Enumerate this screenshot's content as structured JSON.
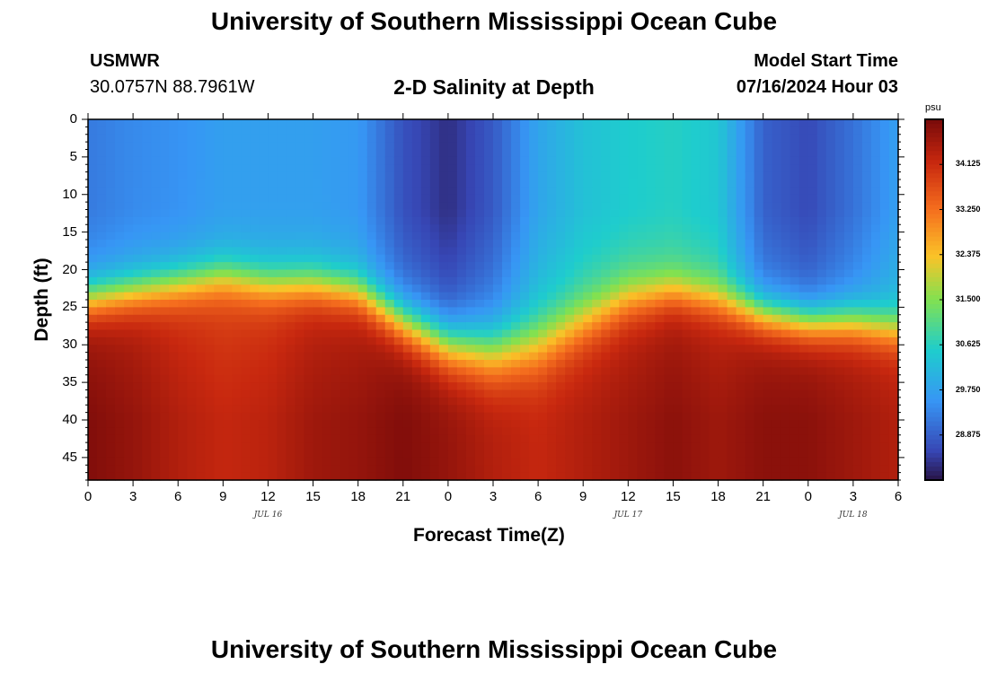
{
  "page": {
    "title_top": "University of Southern Mississippi Ocean Cube",
    "title_bottom": "University of Southern Mississippi Ocean Cube",
    "station": "USMWR",
    "coords": "30.0757N  88.7961W",
    "plot_title": "2-D Salinity at Depth",
    "model_start_label": "Model Start Time",
    "model_start_value": "07/16/2024 Hour 03"
  },
  "chart_data": {
    "type": "heatmap",
    "title": "2-D Salinity at Depth",
    "xlabel": "Forecast Time(Z)",
    "ylabel": "Depth (ft)",
    "x_tick_labels": [
      "0",
      "3",
      "6",
      "9",
      "12",
      "15",
      "18",
      "21",
      "0",
      "3",
      "6",
      "9",
      "12",
      "15",
      "18",
      "21",
      "0",
      "3",
      "6"
    ],
    "x_hours_range": [
      0,
      54
    ],
    "date_labels": [
      {
        "text": "JUL 16",
        "hour": 12
      },
      {
        "text": "JUL 17",
        "hour": 36
      },
      {
        "text": "JUL 18",
        "hour": 51
      }
    ],
    "y_tick_labels": [
      "0",
      "5",
      "10",
      "15",
      "20",
      "25",
      "30",
      "35",
      "40",
      "45"
    ],
    "y_ticks": [
      0,
      5,
      10,
      15,
      20,
      25,
      30,
      35,
      40,
      45
    ],
    "ylim": [
      0,
      48
    ],
    "colorbar": {
      "unit": "psu",
      "min": 28.0,
      "max": 35.0,
      "ticks": [
        34.125,
        33.25,
        32.375,
        31.5,
        30.625,
        29.75,
        28.875
      ],
      "tick_labels": [
        "34.125",
        "33.250",
        "32.375",
        "31.500",
        "30.625",
        "29.750",
        "28.875"
      ]
    },
    "columns": [
      {
        "hour": 0,
        "surface": 29.2,
        "halocline_depth": 24,
        "thickness": 7,
        "bottom": 34.9
      },
      {
        "hour": 3,
        "surface": 29.4,
        "halocline_depth": 23,
        "thickness": 7,
        "bottom": 34.7
      },
      {
        "hour": 6,
        "surface": 29.5,
        "halocline_depth": 22,
        "thickness": 7,
        "bottom": 34.4
      },
      {
        "hour": 9,
        "surface": 29.7,
        "halocline_depth": 21,
        "thickness": 7,
        "bottom": 34.2
      },
      {
        "hour": 12,
        "surface": 29.7,
        "halocline_depth": 22,
        "thickness": 7,
        "bottom": 34.3
      },
      {
        "hour": 15,
        "surface": 29.7,
        "halocline_depth": 22,
        "thickness": 7,
        "bottom": 34.6
      },
      {
        "hour": 18,
        "surface": 29.6,
        "halocline_depth": 23,
        "thickness": 7,
        "bottom": 34.7
      },
      {
        "hour": 21,
        "surface": 28.7,
        "halocline_depth": 27,
        "thickness": 8,
        "bottom": 34.9
      },
      {
        "hour": 24,
        "surface": 28.3,
        "halocline_depth": 30,
        "thickness": 9,
        "bottom": 34.7
      },
      {
        "hour": 27,
        "surface": 28.8,
        "halocline_depth": 31,
        "thickness": 10,
        "bottom": 34.4
      },
      {
        "hour": 30,
        "surface": 29.8,
        "halocline_depth": 30,
        "thickness": 10,
        "bottom": 34.2
      },
      {
        "hour": 33,
        "surface": 30.3,
        "halocline_depth": 27,
        "thickness": 9,
        "bottom": 34.4
      },
      {
        "hour": 36,
        "surface": 30.5,
        "halocline_depth": 24,
        "thickness": 8,
        "bottom": 34.6
      },
      {
        "hour": 39,
        "surface": 30.6,
        "halocline_depth": 23,
        "thickness": 7,
        "bottom": 34.8
      },
      {
        "hour": 42,
        "surface": 30.4,
        "halocline_depth": 24,
        "thickness": 7,
        "bottom": 34.6
      },
      {
        "hour": 45,
        "surface": 28.9,
        "halocline_depth": 26,
        "thickness": 7,
        "bottom": 34.8
      },
      {
        "hour": 48,
        "surface": 28.6,
        "halocline_depth": 27,
        "thickness": 7,
        "bottom": 34.8
      },
      {
        "hour": 51,
        "surface": 29.1,
        "halocline_depth": 27,
        "thickness": 7,
        "bottom": 34.6
      },
      {
        "hour": 54,
        "surface": 29.7,
        "halocline_depth": 28,
        "thickness": 7,
        "bottom": 34.4
      }
    ]
  }
}
